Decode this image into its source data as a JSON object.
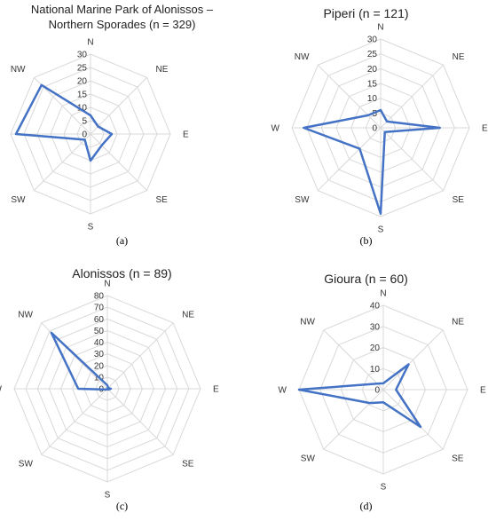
{
  "chart_data": [
    {
      "type": "radar",
      "title_lines": [
        "National Marine Park of Alonissos –",
        "Northern Sporades (n = 329)"
      ],
      "caption": "(a)",
      "categories": [
        "N",
        "NE",
        "E",
        "SE",
        "S",
        "SW",
        "W",
        "NW"
      ],
      "ticks": [
        "30",
        "25",
        "20",
        "15",
        "10",
        "5",
        "0"
      ],
      "rlim": [
        0,
        30
      ],
      "values": [
        7,
        4,
        8,
        6,
        10,
        3,
        28,
        26
      ],
      "line_color": "#4472C4",
      "grid": true
    },
    {
      "type": "radar",
      "title_lines": [
        "Piperi (n = 121)"
      ],
      "caption": "(b)",
      "categories": [
        "N",
        "NE",
        "E",
        "SE",
        "S",
        "SW",
        "W",
        "NW"
      ],
      "ticks": [
        "30",
        "25",
        "20",
        "15",
        "10",
        "5",
        "0"
      ],
      "rlim": [
        0,
        30
      ],
      "values": [
        6,
        3,
        20,
        2,
        29,
        10,
        26,
        6
      ],
      "line_color": "#4472C4",
      "grid": true
    },
    {
      "type": "radar",
      "title_lines": [
        "Alonissos (n = 89)"
      ],
      "caption": "(c)",
      "categories": [
        "N",
        "NE",
        "E",
        "SE",
        "S",
        "SW",
        "W",
        "NW"
      ],
      "ticks": [
        "80",
        "70",
        "60",
        "50",
        "40",
        "30",
        "20",
        "10",
        "0"
      ],
      "rlim": [
        0,
        80
      ],
      "values": [
        3,
        1,
        3,
        1,
        0,
        1,
        25,
        68
      ],
      "line_color": "#4472C4",
      "grid": true
    },
    {
      "type": "radar",
      "title_lines": [
        "Gioura (n = 60)"
      ],
      "caption": "(d)",
      "categories": [
        "N",
        "NE",
        "E",
        "SE",
        "S",
        "SW",
        "W",
        "NW"
      ],
      "ticks": [
        "40",
        "30",
        "20",
        "10",
        "0"
      ],
      "rlim": [
        0,
        40
      ],
      "values": [
        3,
        17,
        6,
        25,
        6,
        9,
        40,
        4
      ],
      "line_color": "#4472C4",
      "grid": true
    }
  ]
}
